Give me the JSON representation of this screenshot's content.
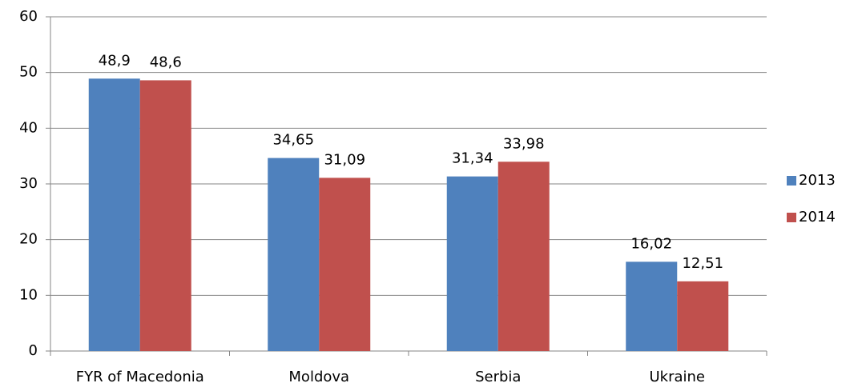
{
  "chart_data": {
    "type": "bar",
    "categories": [
      "FYR of Macedonia",
      "Moldova",
      "Serbia",
      "Ukraine"
    ],
    "series": [
      {
        "name": "2013",
        "color": "#4f81bd",
        "values": [
          48.9,
          34.65,
          31.34,
          16.02
        ],
        "value_labels": [
          "48,9",
          "34,65",
          "31,34",
          "16,02"
        ]
      },
      {
        "name": "2014",
        "color": "#c0504d",
        "values": [
          48.6,
          31.09,
          33.98,
          12.51
        ],
        "value_labels": [
          "48,6",
          "31,09",
          "33,98",
          "12,51"
        ]
      }
    ],
    "ylim": [
      0,
      60
    ],
    "yticks": [
      0,
      10,
      20,
      30,
      40,
      50,
      60
    ],
    "grid": true,
    "legend": "right"
  }
}
